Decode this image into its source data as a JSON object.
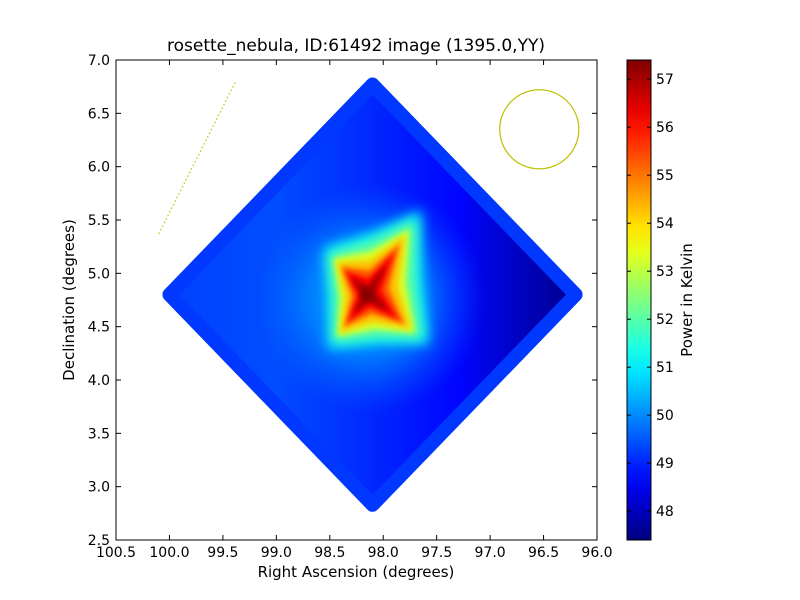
{
  "chart_data": {
    "type": "heatmap",
    "title": "rosette_nebula, ID:61492 image (1395.0,YY)",
    "xlabel": "Right Ascension (degrees)",
    "ylabel": "Declination (degrees)",
    "xlim": [
      100.5,
      96.0
    ],
    "ylim": [
      2.5,
      7.0
    ],
    "x_ticks": [
      100.5,
      100.0,
      99.5,
      99.0,
      98.5,
      98.0,
      97.5,
      97.0,
      96.5,
      96.0
    ],
    "x_tick_labels": [
      "100.5",
      "100.0",
      "99.5",
      "99.0",
      "98.5",
      "98.0",
      "97.5",
      "97.0",
      "96.5",
      "96.0"
    ],
    "y_ticks": [
      2.5,
      3.0,
      3.5,
      4.0,
      4.5,
      5.0,
      5.5,
      6.0,
      6.5,
      7.0
    ],
    "y_tick_labels": [
      "2.5",
      "3.0",
      "3.5",
      "4.0",
      "4.5",
      "5.0",
      "5.5",
      "6.0",
      "6.5",
      "7.0"
    ],
    "colorbar": {
      "label": "Power in Kelvin",
      "range": [
        47.4,
        57.4
      ],
      "ticks": [
        48,
        49,
        50,
        51,
        52,
        53,
        54,
        55,
        56,
        57
      ],
      "tick_labels": [
        "48",
        "49",
        "50",
        "51",
        "52",
        "53",
        "54",
        "55",
        "56",
        "57"
      ],
      "colormap": "jet"
    },
    "field_of_view": {
      "shape": "diamond",
      "vertices": [
        [
          98.1,
          6.77
        ],
        [
          96.2,
          4.8
        ],
        [
          98.1,
          2.83
        ],
        [
          100.0,
          4.8
        ]
      ]
    },
    "emission_peak": {
      "ra": 98.15,
      "dec": 4.8,
      "peak_value": 57.3,
      "arms": [
        [
          98.43,
          5.1
        ],
        [
          97.8,
          5.35
        ],
        [
          98.4,
          4.45
        ],
        [
          97.75,
          4.48
        ]
      ]
    },
    "background_gradient": [
      {
        "ra": 96.3,
        "value": 47.6
      },
      {
        "ra": 97.3,
        "value": 48.7
      },
      {
        "ra": 99.0,
        "value": 49.4
      },
      {
        "ra": 99.9,
        "value": 49.3
      }
    ],
    "beam_circle": {
      "ra": 96.54,
      "dec": 6.35,
      "radius_deg": 0.37,
      "color": "#bfbf00"
    },
    "dotted_line": {
      "from": [
        100.1,
        5.37
      ],
      "to": [
        99.38,
        6.8
      ],
      "color": "#bfbf00"
    }
  }
}
